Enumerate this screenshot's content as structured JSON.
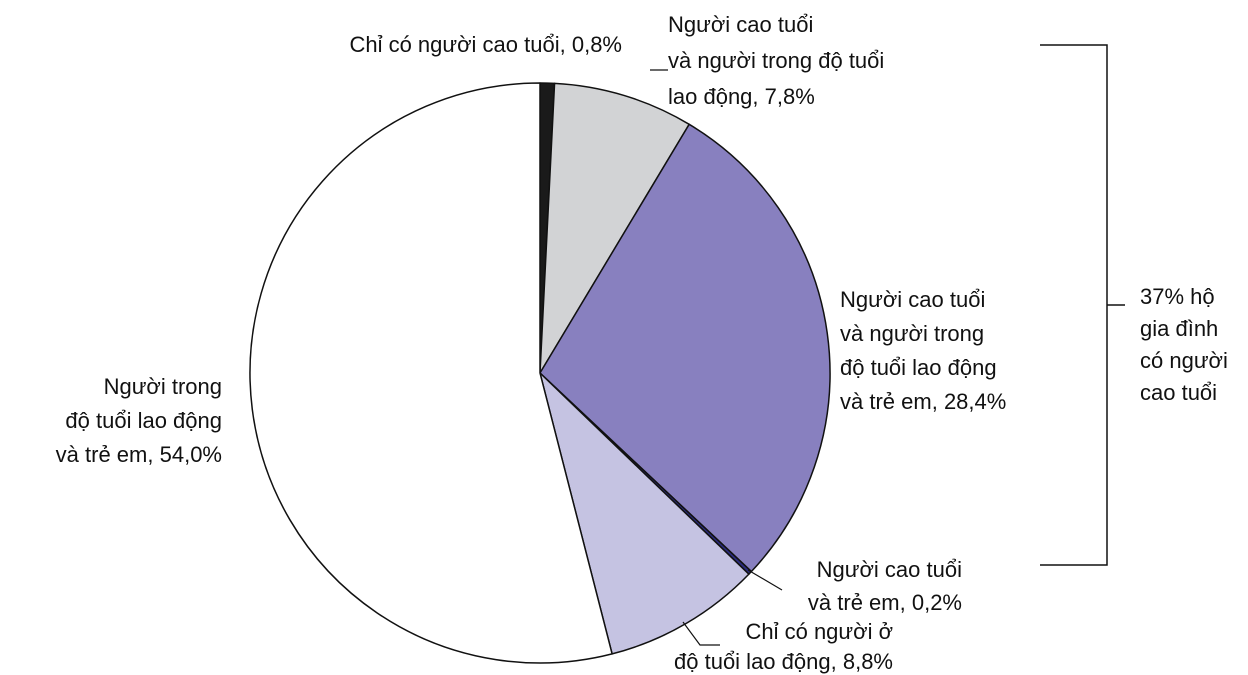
{
  "chart_data": {
    "type": "pie",
    "categories": [
      "Chỉ có người cao tuổi,",
      "Người cao tuổi\nvà người trong độ tuổi\nlao động,",
      "Người cao tuổi\nvà người trong\nđộ tuổi lao động\nvà trẻ em,",
      "Người cao tuổi\nvà trẻ em,",
      "Chỉ có người ở\nđộ tuổi lao động,",
      "Người trong\nđộ tuổi lao động\nvà trẻ em,"
    ],
    "values": [
      0.8,
      7.8,
      28.4,
      0.2,
      8.8,
      54.0
    ],
    "value_labels": [
      "0,8%",
      "7,8%",
      "28,4%",
      "0,2%",
      "8,8%",
      "54,0%"
    ],
    "colors": [
      "#1a1a1a",
      "#d2d3d5",
      "#8880bf",
      "#2b2b7d",
      "#c5c3e2",
      "#ffffff"
    ],
    "annotation": "37% hộ\ngia đình\ncó người\ncao tuổi"
  }
}
